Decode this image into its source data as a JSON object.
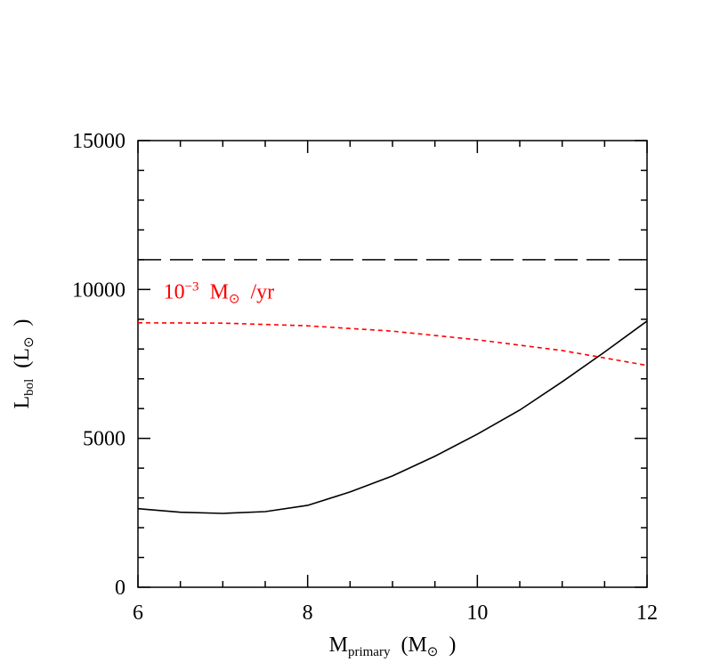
{
  "chart_data": {
    "type": "line",
    "xlabel": [
      {
        "text": "M"
      },
      {
        "text": "primary",
        "sub": true
      },
      {
        "text": "(M"
      },
      {
        "text": "⊙",
        "sub": true
      },
      {
        "text": ")"
      }
    ],
    "ylabel": [
      {
        "text": "L"
      },
      {
        "text": "bol",
        "sub": true
      },
      {
        "text": "(L"
      },
      {
        "text": "⊙",
        "sub": true
      },
      {
        "text": ")"
      }
    ],
    "annotation": {
      "parts": [
        {
          "text": "10"
        },
        {
          "text": "−3",
          "sup": true
        },
        {
          "text": "M"
        },
        {
          "text": "⊙",
          "sub": true
        },
        {
          "text": "/yr"
        }
      ],
      "color": "#ff0000",
      "x": 6.3,
      "y": 9700
    },
    "xlim": [
      6,
      12
    ],
    "xticks": [
      6,
      8,
      10,
      12
    ],
    "xminorticks": [
      6.5,
      7,
      7.5,
      8.5,
      9,
      9.5,
      10.5,
      11,
      11.5
    ],
    "ylim": [
      0,
      15000
    ],
    "yticks": [
      0,
      5000,
      10000,
      15000
    ],
    "yminorticks": [
      1000,
      2000,
      3000,
      4000,
      6000,
      7000,
      8000,
      9000,
      11000,
      12000,
      13000,
      14000
    ],
    "series": [
      {
        "color": "#000000",
        "dash": "solid",
        "x": [
          6,
          6.5,
          7,
          7.5,
          8,
          8.5,
          9,
          9.5,
          10,
          10.5,
          11,
          11.5,
          12
        ],
        "values": [
          2640,
          2520,
          2480,
          2540,
          2750,
          3200,
          3740,
          4400,
          5140,
          5950,
          6900,
          7900,
          8940
        ]
      },
      {
        "color": "#ff0000",
        "dash": "short",
        "x": [
          6,
          7,
          8,
          9,
          10,
          11,
          11.5,
          12
        ],
        "values": [
          8880,
          8870,
          8780,
          8600,
          8310,
          7950,
          7700,
          7450
        ]
      },
      {
        "color": "#000000",
        "dash": "long",
        "x": [
          6,
          12
        ],
        "values": [
          11000,
          11000
        ]
      }
    ]
  }
}
